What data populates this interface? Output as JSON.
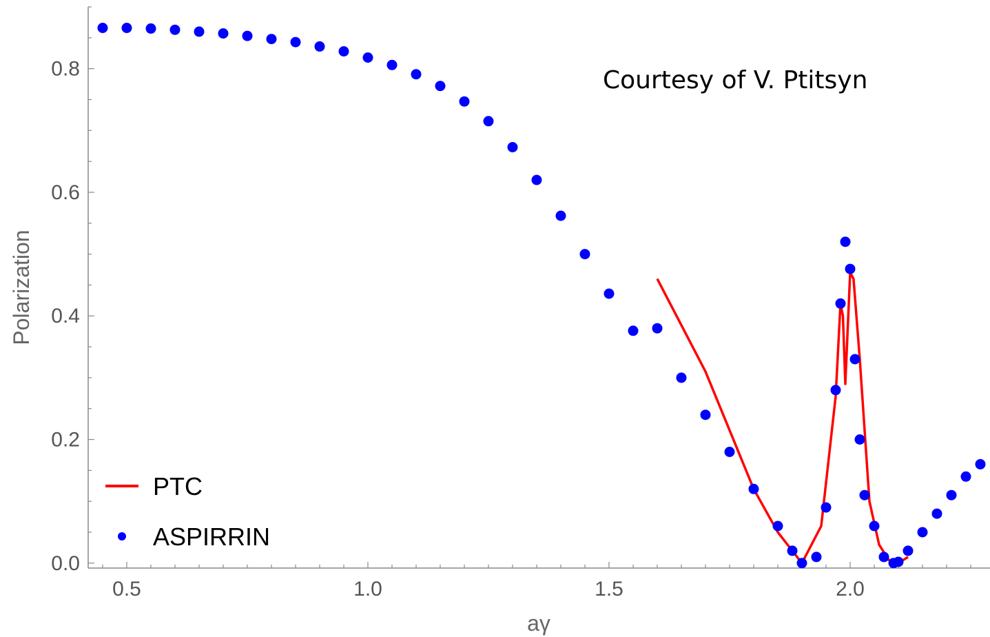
{
  "chart_data": {
    "type": "scatter",
    "xlabel": "aγ",
    "ylabel": "Polarization",
    "xlim": [
      0.42,
      2.29
    ],
    "ylim": [
      -0.008,
      0.9
    ],
    "x_ticks": [
      0.5,
      1.0,
      1.5,
      2.0
    ],
    "x_tick_labels": [
      "0.5",
      "1.0",
      "1.5",
      "2.0"
    ],
    "y_ticks": [
      0.0,
      0.2,
      0.4,
      0.6,
      0.8
    ],
    "y_tick_labels": [
      "0.0",
      "0.2",
      "0.4",
      "0.6",
      "0.8"
    ],
    "annotations": [
      "Courtesy of V. Ptitsyn"
    ],
    "legend": {
      "position": "bottom-left"
    },
    "series": [
      {
        "name": "PTC",
        "kind": "line",
        "color": "#ff0000",
        "x": [
          1.6,
          1.7,
          1.8,
          1.85,
          1.9,
          1.94,
          1.97,
          1.98,
          1.985,
          1.99,
          2.0,
          2.007,
          2.02,
          2.04,
          2.06,
          2.08,
          2.1,
          2.12
        ],
        "y": [
          0.46,
          0.31,
          0.12,
          0.05,
          0.0,
          0.06,
          0.27,
          0.42,
          0.4,
          0.29,
          0.47,
          0.46,
          0.33,
          0.1,
          0.03,
          0.005,
          0.0,
          0.01
        ]
      },
      {
        "name": "ASPIRRIN",
        "kind": "points",
        "color": "#0000ff",
        "x": [
          0.45,
          0.5,
          0.55,
          0.6,
          0.65,
          0.7,
          0.75,
          0.8,
          0.85,
          0.9,
          0.95,
          1.0,
          1.05,
          1.1,
          1.15,
          1.2,
          1.25,
          1.3,
          1.35,
          1.4,
          1.45,
          1.5,
          1.55,
          1.6,
          1.65,
          1.7,
          1.75,
          1.8,
          1.85,
          1.88,
          1.9,
          1.93,
          1.95,
          1.97,
          1.98,
          1.99,
          2.0,
          2.01,
          2.02,
          2.03,
          2.05,
          2.07,
          2.09,
          2.1,
          2.12,
          2.15,
          2.18,
          2.21,
          2.24,
          2.27
        ],
        "y": [
          0.866,
          0.866,
          0.865,
          0.863,
          0.86,
          0.857,
          0.853,
          0.848,
          0.843,
          0.836,
          0.828,
          0.818,
          0.806,
          0.791,
          0.772,
          0.747,
          0.715,
          0.673,
          0.62,
          0.562,
          0.5,
          0.436,
          0.376,
          0.38,
          0.3,
          0.24,
          0.18,
          0.12,
          0.06,
          0.02,
          0.0,
          0.01,
          0.09,
          0.28,
          0.42,
          0.52,
          0.476,
          0.33,
          0.2,
          0.11,
          0.06,
          0.01,
          0.0,
          0.002,
          0.02,
          0.05,
          0.08,
          0.11,
          0.14,
          0.16
        ]
      }
    ]
  }
}
